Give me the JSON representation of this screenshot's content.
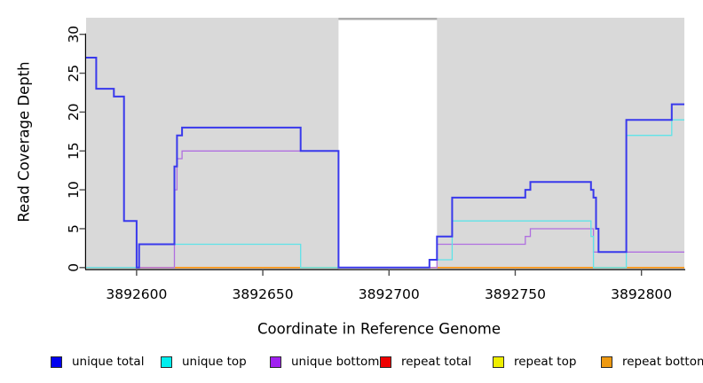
{
  "figure": {
    "background": "#ffffff",
    "panel_background": "#d9d9d9",
    "axis_color": "#000000",
    "tick_color": "#4d4d4d"
  },
  "chart_data": {
    "type": "line",
    "subtype": "step",
    "title": "",
    "xlabel": "Coordinate in Reference Genome",
    "ylabel": "Read Coverage Depth",
    "xlim": [
      3892580,
      3892817
    ],
    "ylim": [
      0,
      32
    ],
    "x_ticks": [
      3892600,
      3892650,
      3892700,
      3892750,
      3892800
    ],
    "y_ticks": [
      0,
      5,
      10,
      15,
      20,
      25,
      30
    ],
    "grid": false,
    "legend_position": "bottom",
    "panel_bg": "#d9d9d9",
    "highlight_region": {
      "x0": 3892680,
      "x1": 3892719,
      "color": "#ffffff",
      "top_edge_color": "#a9a9a9"
    },
    "series": [
      {
        "name": "repeat total",
        "line_color": "#ee0000",
        "width": 1.2,
        "steps": [
          [
            3892580,
            0
          ]
        ]
      },
      {
        "name": "repeat top",
        "line_color": "#eeee00",
        "width": 1.2,
        "steps": [
          [
            3892580,
            0
          ]
        ]
      },
      {
        "name": "repeat bottom",
        "line_color": "#ff9412",
        "width": 1.6,
        "steps": [
          [
            3892580,
            0
          ]
        ]
      },
      {
        "name": "unique bottom",
        "line_color": "#b06fe0",
        "width": 1.3,
        "steps": [
          [
            3892580,
            0
          ],
          [
            3892615,
            10
          ],
          [
            3892616,
            14
          ],
          [
            3892618,
            15
          ],
          [
            3892680,
            0
          ],
          [
            3892719,
            3
          ],
          [
            3892754,
            4
          ],
          [
            3892756,
            5
          ],
          [
            3892781,
            2
          ]
        ]
      },
      {
        "name": "unique top",
        "line_color": "#5fe3e8",
        "width": 1.3,
        "steps": [
          [
            3892580,
            0
          ],
          [
            3892601,
            3
          ],
          [
            3892665,
            0
          ],
          [
            3892716,
            1
          ],
          [
            3892725,
            6
          ],
          [
            3892780,
            4
          ],
          [
            3892781,
            0
          ],
          [
            3892794,
            17
          ],
          [
            3892812,
            19
          ]
        ]
      },
      {
        "name": "unique total",
        "line_color": "#3939ec",
        "width": 2,
        "steps": [
          [
            3892580,
            27
          ],
          [
            3892584,
            23
          ],
          [
            3892591,
            22
          ],
          [
            3892595,
            6
          ],
          [
            3892600,
            0
          ],
          [
            3892601,
            3
          ],
          [
            3892615,
            13
          ],
          [
            3892616,
            17
          ],
          [
            3892618,
            18
          ],
          [
            3892665,
            15
          ],
          [
            3892680,
            0
          ],
          [
            3892716,
            1
          ],
          [
            3892719,
            4
          ],
          [
            3892725,
            9
          ],
          [
            3892754,
            10
          ],
          [
            3892756,
            11
          ],
          [
            3892780,
            10
          ],
          [
            3892781,
            9
          ],
          [
            3892782,
            5
          ],
          [
            3892783,
            2
          ],
          [
            3892794,
            19
          ],
          [
            3892812,
            21
          ]
        ]
      }
    ]
  },
  "legend": {
    "items": [
      {
        "label": "unique total",
        "color": "#0000ee"
      },
      {
        "label": "unique top",
        "color": "#00eeee"
      },
      {
        "label": "unique bottom",
        "color": "#a020f0"
      },
      {
        "label": "repeat total",
        "color": "#ee0000"
      },
      {
        "label": "repeat top",
        "color": "#eeee00"
      },
      {
        "label": "repeat bottom",
        "color": "#ee9911"
      }
    ]
  }
}
